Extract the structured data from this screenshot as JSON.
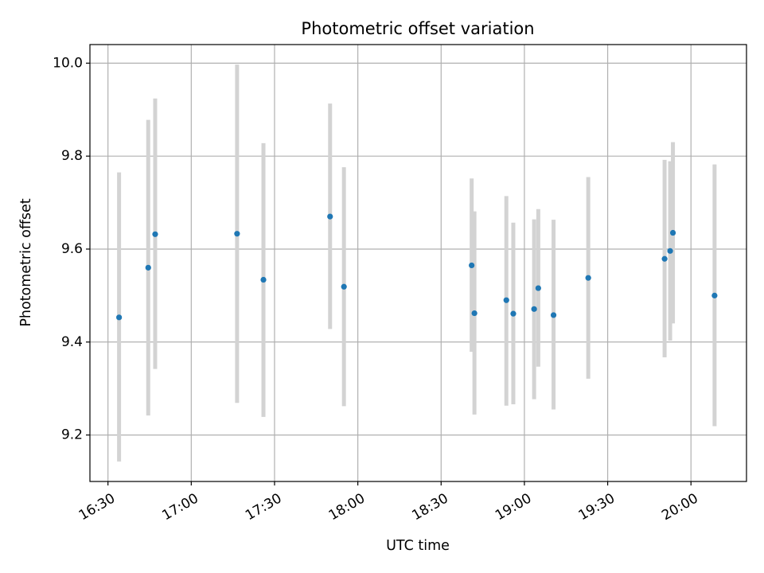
{
  "chart_data": {
    "type": "scatter",
    "title": "Photometric offset variation",
    "xlabel": "UTC time",
    "ylabel": "Photometric offset",
    "x_is_time": true,
    "xlim": [
      "16:23:30",
      "20:20:00"
    ],
    "ylim": [
      9.1,
      10.04
    ],
    "x_ticks": [
      "16:30",
      "17:00",
      "17:30",
      "18:00",
      "18:30",
      "19:00",
      "19:30",
      "20:00"
    ],
    "y_ticks": [
      9.2,
      9.4,
      9.6,
      9.8,
      10.0
    ],
    "y_tick_labels": [
      "9.2",
      "9.4",
      "9.6",
      "9.8",
      "10.0"
    ],
    "grid": true,
    "colors": {
      "points": "#1f77b4",
      "error_bars": "#d3d3d3",
      "grid": "#b0b0b0"
    },
    "points": [
      {
        "x": "16:34:00",
        "y": 9.453,
        "low": 9.143,
        "high": 9.765
      },
      {
        "x": "16:44:30",
        "y": 9.56,
        "low": 9.242,
        "high": 9.878
      },
      {
        "x": "16:47:00",
        "y": 9.632,
        "low": 9.342,
        "high": 9.924
      },
      {
        "x": "17:16:30",
        "y": 9.633,
        "low": 9.269,
        "high": 9.997
      },
      {
        "x": "17:26:00",
        "y": 9.534,
        "low": 9.239,
        "high": 9.828
      },
      {
        "x": "17:50:00",
        "y": 9.67,
        "low": 9.428,
        "high": 9.913
      },
      {
        "x": "17:55:00",
        "y": 9.519,
        "low": 9.262,
        "high": 9.776
      },
      {
        "x": "18:41:00",
        "y": 9.565,
        "low": 9.379,
        "high": 9.752
      },
      {
        "x": "18:42:00",
        "y": 9.462,
        "low": 9.244,
        "high": 9.681
      },
      {
        "x": "18:53:30",
        "y": 9.49,
        "low": 9.263,
        "high": 9.714
      },
      {
        "x": "18:56:00",
        "y": 9.461,
        "low": 9.266,
        "high": 9.657
      },
      {
        "x": "19:03:30",
        "y": 9.471,
        "low": 9.277,
        "high": 9.664
      },
      {
        "x": "19:05:00",
        "y": 9.516,
        "low": 9.347,
        "high": 9.686
      },
      {
        "x": "19:10:30",
        "y": 9.458,
        "low": 9.255,
        "high": 9.663
      },
      {
        "x": "19:23:00",
        "y": 9.538,
        "low": 9.321,
        "high": 9.755
      },
      {
        "x": "19:50:30",
        "y": 9.579,
        "low": 9.367,
        "high": 9.792
      },
      {
        "x": "19:52:30",
        "y": 9.596,
        "low": 9.403,
        "high": 9.789
      },
      {
        "x": "19:53:30",
        "y": 9.635,
        "low": 9.44,
        "high": 9.83
      },
      {
        "x": "20:08:30",
        "y": 9.5,
        "low": 9.219,
        "high": 9.782
      }
    ]
  }
}
